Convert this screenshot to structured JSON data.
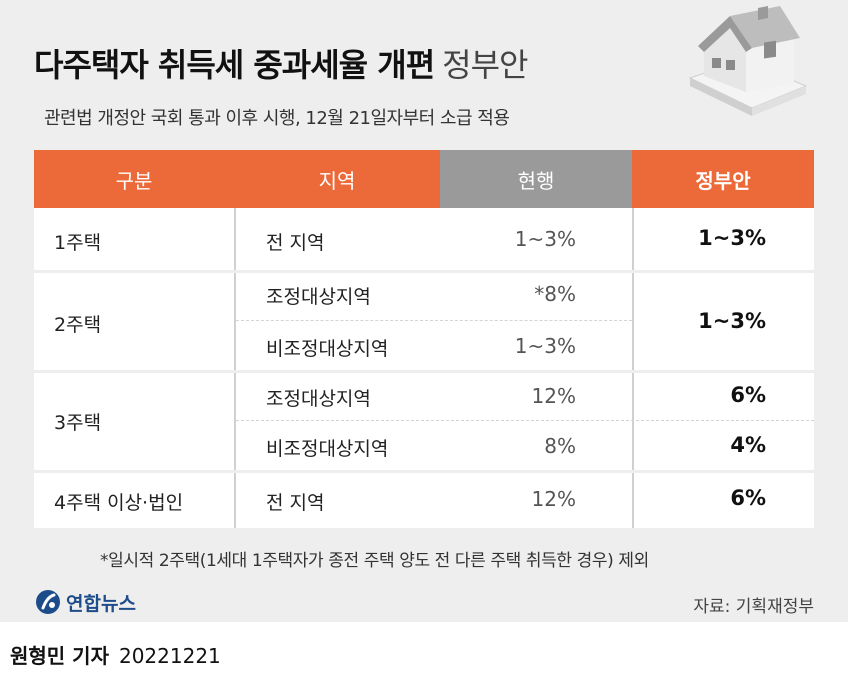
{
  "header": {
    "title": "다주택자 취득세 중과세율 개편",
    "title_suffix": "정부안",
    "subtitle": "관련법 개정안 국회 통과 이후 시행, 12월 21일자부터 소급 적용"
  },
  "table": {
    "columns": [
      "구분",
      "지역",
      "현행",
      "정부안"
    ],
    "rows": [
      {
        "category": "1주택",
        "region": "전 지역",
        "current": "1~3%",
        "proposal": "1~3%"
      },
      {
        "category": "2주택",
        "region": "조정대상지역",
        "current": "*8%",
        "proposal": "1~3%"
      },
      {
        "category": "",
        "region": "비조정대상지역",
        "current": "1~3%",
        "proposal": ""
      },
      {
        "category": "3주택",
        "region": "조정대상지역",
        "current": "12%",
        "proposal": "6%"
      },
      {
        "category": "",
        "region": "비조정대상지역",
        "current": "8%",
        "proposal": "4%"
      },
      {
        "category": "4주택 이상·법인",
        "region": "전 지역",
        "current": "12%",
        "proposal": "6%"
      }
    ]
  },
  "footnote": "*일시적 2주택(1세대 1주택자가 종전 주택 양도 전 다른 주택 취득한 경우) 제외",
  "logo_text": "연합뉴스",
  "source": "자료: 기획재정부",
  "byline": {
    "reporter": "원형민 기자",
    "date": "20221221"
  },
  "colors": {
    "accent": "#ec6a3a",
    "header_gray": "#9a9a9a",
    "background": "#eeeeee"
  }
}
